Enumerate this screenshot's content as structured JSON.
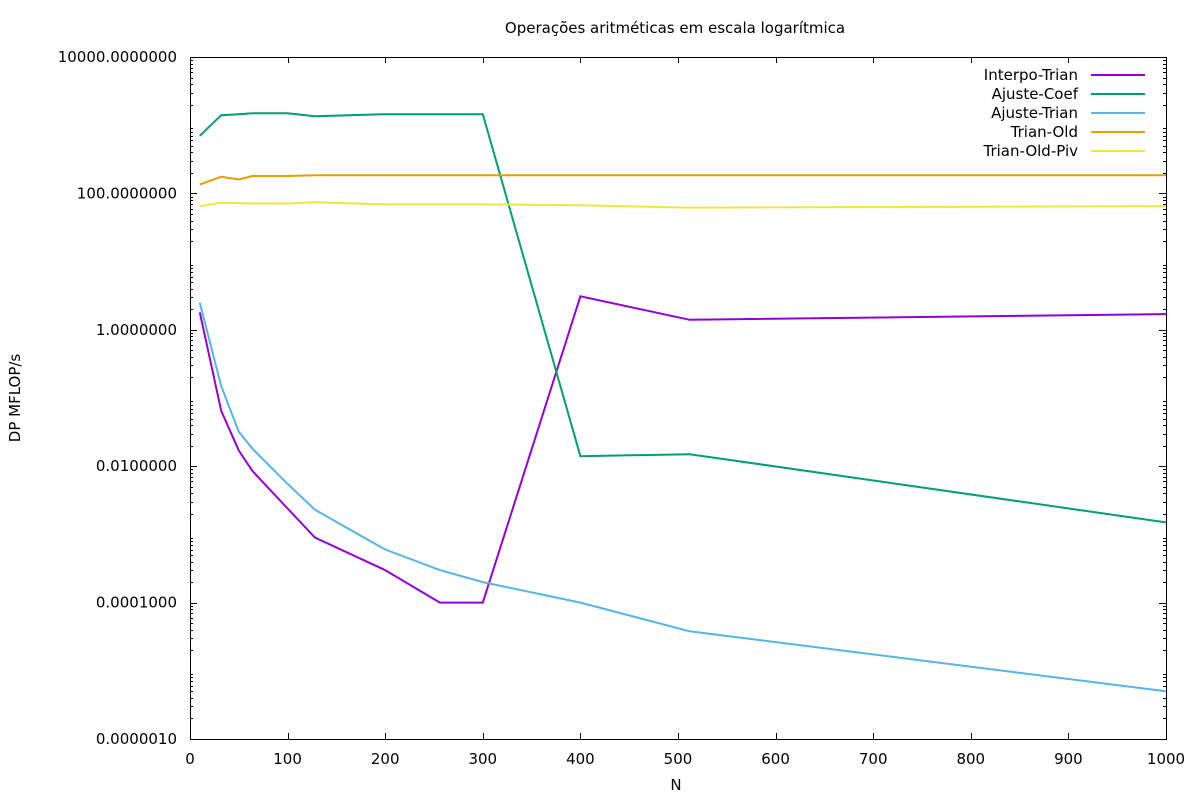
{
  "chart_data": {
    "type": "line",
    "title": "Operações aritméticas em escala logarítmica",
    "xlabel": "N",
    "ylabel": "DP MFLOP/s",
    "xlim": [
      0,
      1000
    ],
    "ylim": [
      1e-06,
      10000
    ],
    "yscale": "log",
    "grid": false,
    "legend_position": "top-right",
    "x_ticks": [
      0,
      100,
      200,
      300,
      400,
      500,
      600,
      700,
      800,
      900,
      1000
    ],
    "x_tick_labels": [
      "0",
      "100",
      "200",
      "300",
      "400",
      "500",
      "600",
      "700",
      "800",
      "900",
      "1000"
    ],
    "y_ticks": [
      1e-06,
      0.0001,
      0.01,
      1,
      100,
      10000
    ],
    "y_tick_labels": [
      "0.0000010",
      "0.0001000",
      "0.0100000",
      "1.0000000",
      "100.0000000",
      "10000.0000000"
    ],
    "series": [
      {
        "name": "Interpo-Trian",
        "color": "#9400d3",
        "x": [
          10,
          32,
          50,
          64,
          100,
          128,
          200,
          256,
          300,
          400,
          512,
          1000
        ],
        "y": [
          1.8,
          0.065,
          0.017,
          0.0085,
          0.0024,
          0.0009,
          0.0003,
          0.0001,
          0.0001,
          3.1,
          1.4,
          1.7
        ]
      },
      {
        "name": "Ajuste-Coef",
        "color": "#009e73",
        "x": [
          10,
          32,
          50,
          64,
          100,
          128,
          200,
          256,
          300,
          400,
          512,
          1000
        ],
        "y": [
          700,
          1400,
          1450,
          1500,
          1500,
          1350,
          1450,
          1450,
          1450,
          0.014,
          0.015,
          0.0015
        ]
      },
      {
        "name": "Ajuste-Trian",
        "color": "#56b4e9",
        "x": [
          10,
          32,
          50,
          64,
          100,
          128,
          200,
          256,
          300,
          400,
          512,
          1000
        ],
        "y": [
          2.5,
          0.15,
          0.032,
          0.018,
          0.0055,
          0.0023,
          0.0006,
          0.0003,
          0.0002,
          0.0001,
          3.8e-05,
          5e-06
        ]
      },
      {
        "name": "Trian-Old",
        "color": "#e69f00",
        "x": [
          10,
          32,
          50,
          64,
          100,
          128,
          200,
          256,
          300,
          400,
          512,
          1000
        ],
        "y": [
          135,
          175,
          160,
          180,
          180,
          185,
          185,
          185,
          185,
          185,
          185,
          185
        ]
      },
      {
        "name": "Trian-Old-Piv",
        "color": "#f0e442",
        "x": [
          10,
          32,
          50,
          64,
          100,
          128,
          200,
          256,
          300,
          400,
          512,
          1000
        ],
        "y": [
          65,
          73,
          72,
          71,
          71,
          74,
          69,
          69,
          69,
          67,
          62,
          65
        ]
      }
    ]
  }
}
